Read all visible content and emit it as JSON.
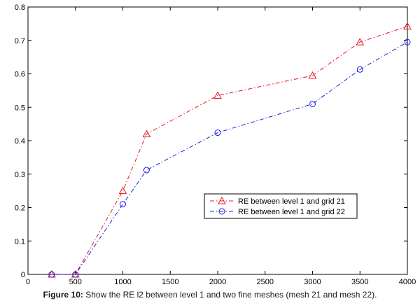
{
  "chart_data": {
    "type": "line",
    "title": "",
    "xlabel": "",
    "ylabel": "",
    "xlim": [
      0,
      4000
    ],
    "ylim": [
      0,
      0.8
    ],
    "xticks": [
      0,
      500,
      1000,
      1500,
      2000,
      2500,
      3000,
      3500,
      4000
    ],
    "yticks": [
      0,
      0.1,
      0.2,
      0.3,
      0.4,
      0.5,
      0.6,
      0.7,
      0.8
    ],
    "xtick_labels": [
      "0",
      "500",
      "1000",
      "1500",
      "2000",
      "2500",
      "3000",
      "3500",
      "4000"
    ],
    "ytick_labels": [
      "0",
      "0.1",
      "0.2",
      "0.3",
      "0.4",
      "0.5",
      "0.6",
      "0.7",
      "0.8"
    ],
    "grid": false,
    "legend_position": "center-right",
    "series": [
      {
        "name": "RE between level 1 and grid 21",
        "color": "#e8141e",
        "marker": "triangle-up",
        "linestyle": "dash-dot",
        "x": [
          250,
          500,
          1000,
          1250,
          2000,
          3000,
          3500,
          4000
        ],
        "y": [
          0.0,
          0.0,
          0.25,
          0.42,
          0.535,
          0.595,
          0.695,
          0.742
        ]
      },
      {
        "name": "RE between level 1 and grid 22",
        "color": "#1a1ae6",
        "marker": "circle",
        "linestyle": "dash-dot",
        "x": [
          250,
          500,
          1000,
          1250,
          2000,
          3000,
          3500,
          4000
        ],
        "y": [
          0.0,
          0.0,
          0.21,
          0.312,
          0.424,
          0.51,
          0.613,
          0.695
        ]
      }
    ]
  },
  "caption": {
    "label": "Figure 10:",
    "text": " Show the RE l2 between level 1 and two fine meshes (mesh 21 and mesh 22)."
  }
}
